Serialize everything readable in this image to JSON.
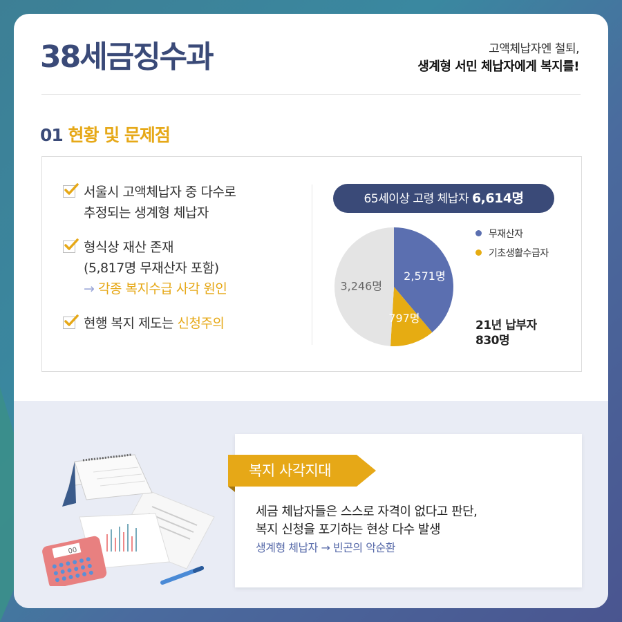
{
  "header": {
    "title": "38세금징수과",
    "subtitle_line1": "고액체납자엔 철퇴,",
    "subtitle_line2": "생계형 서민 체납자에게 복지를!"
  },
  "section": {
    "number": "01",
    "title": "현황 및 문제점"
  },
  "checklist": {
    "item1_line1": "서울시 고액체납자 중 다수로",
    "item1_line2": "추정되는 생계형 체납자",
    "item2_line1": "형식상 재산 존재",
    "item2_line2": "(5,817명 무재산자 포함)",
    "item2_arrow": "→",
    "item2_line3": "각종 복지수급 사각 원인",
    "item3_text": "현행 복지 제도는 ",
    "item3_highlight": "신청주의"
  },
  "pill": {
    "text": "65세이상 고령 체납자 ",
    "value": "6,614명"
  },
  "chart_data": {
    "type": "pie",
    "title": "65세이상 고령 체납자 6,614명",
    "slices": [
      {
        "label": "무재산자",
        "value": 2571,
        "display": "2,571명",
        "color": "#5b6fb0"
      },
      {
        "label": "기초생활수급자",
        "value": 797,
        "display": "797명",
        "color": "#e6ac12"
      },
      {
        "label": "",
        "value": 3246,
        "display": "3,246명",
        "color": "#e4e4e4"
      }
    ],
    "legend": [
      "무재산자",
      "기초생활수급자"
    ],
    "legend_placement": "right"
  },
  "legend": {
    "item1": "무재산자",
    "item2": "기초생활수급자"
  },
  "taxpayers": {
    "line1": "21년 납부자",
    "line2": "830명"
  },
  "welfare": {
    "tag": "복지 사각지대",
    "line1": "세금 체납자들은 스스로 자격이 없다고 판단,",
    "line2": "복지 신청을 포기하는 현상 다수 발생",
    "line3": "생계형 체납자 → 빈곤의 악순환"
  },
  "colors": {
    "navy": "#3a4a78",
    "accent_yellow": "#e6a817",
    "pie_blue": "#5b6fb0",
    "pie_gray": "#e4e4e4"
  },
  "illustration": {
    "calculator_display": "00"
  }
}
